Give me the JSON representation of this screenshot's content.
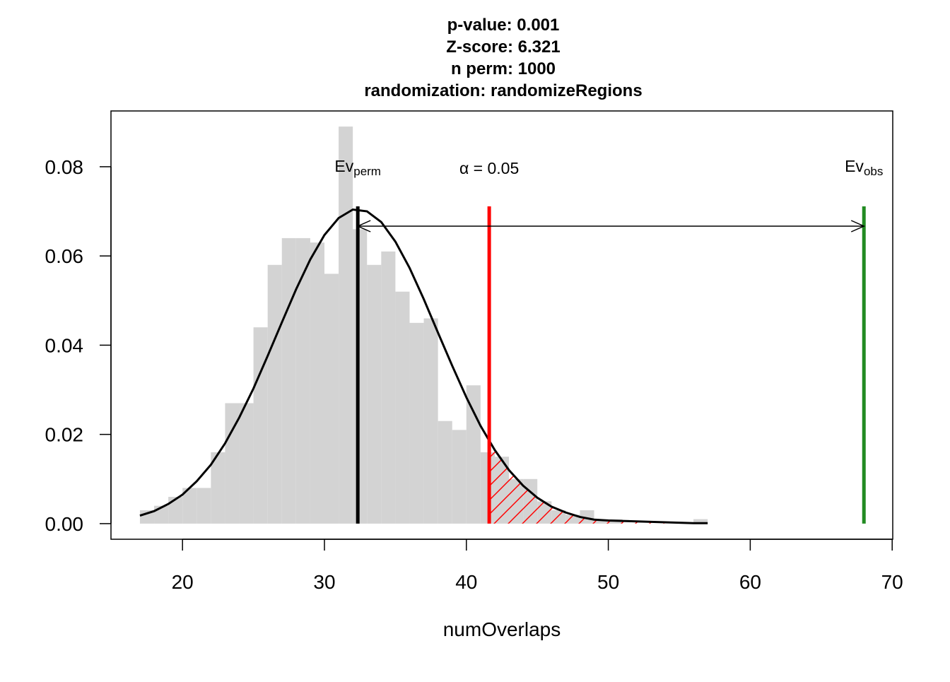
{
  "chart_data": {
    "type": "histogram",
    "title_lines": [
      "p-value:  0.001",
      "Z-score:  6.321",
      "n perm:  1000",
      "randomization:  randomizeRegions"
    ],
    "xlabel": "numOverlaps",
    "bins": [
      17,
      18,
      19,
      20,
      21,
      22,
      23,
      24,
      25,
      26,
      27,
      28,
      29,
      30,
      31,
      32,
      33,
      34,
      35,
      36,
      37,
      38,
      39,
      40,
      41,
      42,
      43,
      44,
      45,
      46,
      47,
      48,
      49,
      50,
      51,
      52,
      53,
      54,
      55,
      56,
      57
    ],
    "values": [
      0.003,
      0.004,
      0.006,
      0.008,
      0.008,
      0.016,
      0.027,
      0.027,
      0.044,
      0.058,
      0.064,
      0.064,
      0.063,
      0.056,
      0.089,
      0.066,
      0.058,
      0.061,
      0.052,
      0.045,
      0.046,
      0.023,
      0.021,
      0.031,
      0.016,
      0.015,
      0.01,
      0.01,
      0.005,
      0.003,
      0.002,
      0.003,
      0.001,
      0.001,
      0,
      0,
      0,
      0,
      0,
      0.001
    ],
    "color": "#d3d3d3",
    "curve": {
      "color": "#000000",
      "x": [
        17,
        18,
        19,
        20,
        21,
        22,
        23,
        24,
        25,
        26,
        27,
        28,
        29,
        30,
        31,
        32,
        33,
        34,
        35,
        36,
        37,
        38,
        39,
        40,
        41,
        42,
        43,
        44,
        45,
        46,
        47,
        48,
        49,
        50,
        51,
        52,
        53,
        54,
        55,
        56,
        57
      ],
      "values": [
        0.0018,
        0.0028,
        0.0044,
        0.0065,
        0.0095,
        0.0132,
        0.018,
        0.0238,
        0.0303,
        0.0376,
        0.0451,
        0.0525,
        0.0592,
        0.0647,
        0.0685,
        0.0704,
        0.07,
        0.0676,
        0.0632,
        0.0573,
        0.0503,
        0.0428,
        0.0354,
        0.0283,
        0.0219,
        0.0165,
        0.012,
        0.0085,
        0.0058,
        0.0038,
        0.0025,
        0.0015,
        0.0009,
        0.0007,
        0.0006,
        0.0005,
        0.0004,
        0.0003,
        0.0002,
        0.0001,
        0.0001
      ]
    },
    "ev_perm": {
      "x": 32.35,
      "label": "Ev",
      "sub": "perm",
      "color": "#000000"
    },
    "alpha": {
      "x": 41.61,
      "label": "α = 0.05",
      "color": "#ff0000"
    },
    "ev_obs": {
      "x": 68.01,
      "label": "Ev",
      "sub": "obs",
      "color": "#228b22"
    },
    "xlim": [
      14.96,
      70.04
    ],
    "ylim": [
      -0.0035,
      0.0925
    ],
    "xticks": [
      20,
      30,
      40,
      50,
      60,
      70
    ],
    "yticks": [
      {
        "value": 0,
        "label": "0.00"
      },
      0.02,
      0.04,
      0.06,
      0.08
    ]
  }
}
